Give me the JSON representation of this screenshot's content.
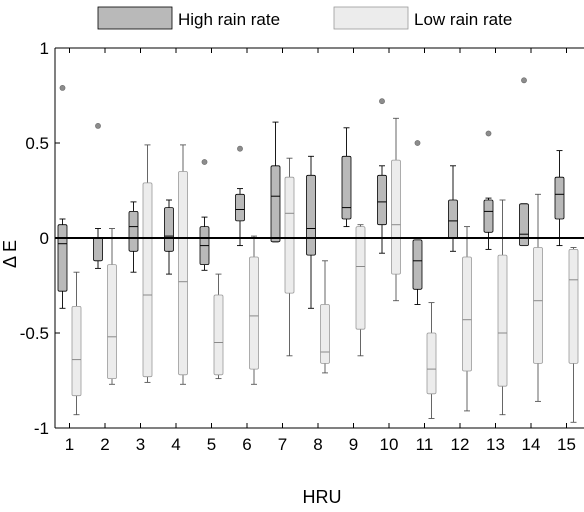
{
  "chart_data": {
    "type": "box",
    "xlabel": "HRU",
    "ylabel": "Δ E",
    "ylim": [
      -1,
      1
    ],
    "yticks": [
      "-1",
      "-0.5",
      "0",
      "0.5",
      "1"
    ],
    "categories": [
      "1",
      "2",
      "3",
      "4",
      "5",
      "6",
      "7",
      "8",
      "9",
      "10",
      "11",
      "12",
      "13",
      "14",
      "15"
    ],
    "reference_line": 0,
    "legend_position": "top",
    "series": [
      {
        "name": "High rain rate",
        "color": "#b9b9b9",
        "boxes": [
          {
            "whisker_low": -0.37,
            "q1": -0.28,
            "median": -0.03,
            "q3": 0.07,
            "whisker_high": 0.1,
            "outliers": [
              0.79
            ]
          },
          {
            "whisker_low": -0.16,
            "q1": -0.12,
            "median": 0.0,
            "q3": 0.0,
            "whisker_high": 0.05,
            "outliers": [
              0.59
            ]
          },
          {
            "whisker_low": -0.18,
            "q1": -0.07,
            "median": 0.06,
            "q3": 0.14,
            "whisker_high": 0.19,
            "outliers": []
          },
          {
            "whisker_low": -0.19,
            "q1": -0.07,
            "median": 0.01,
            "q3": 0.16,
            "whisker_high": 0.2,
            "outliers": []
          },
          {
            "whisker_low": -0.17,
            "q1": -0.14,
            "median": -0.04,
            "q3": 0.06,
            "whisker_high": 0.11,
            "outliers": [
              0.4
            ]
          },
          {
            "whisker_low": -0.04,
            "q1": 0.09,
            "median": 0.15,
            "q3": 0.23,
            "whisker_high": 0.26,
            "outliers": [
              0.47
            ]
          },
          {
            "whisker_low": -0.02,
            "q1": -0.02,
            "median": 0.22,
            "q3": 0.38,
            "whisker_high": 0.61,
            "outliers": []
          },
          {
            "whisker_low": -0.37,
            "q1": -0.09,
            "median": 0.05,
            "q3": 0.33,
            "whisker_high": 0.43,
            "outliers": []
          },
          {
            "whisker_low": 0.06,
            "q1": 0.1,
            "median": 0.16,
            "q3": 0.43,
            "whisker_high": 0.58,
            "outliers": []
          },
          {
            "whisker_low": -0.08,
            "q1": 0.07,
            "median": 0.19,
            "q3": 0.33,
            "whisker_high": 0.38,
            "outliers": [
              0.72
            ]
          },
          {
            "whisker_low": -0.35,
            "q1": -0.27,
            "median": -0.12,
            "q3": -0.01,
            "whisker_high": -0.01,
            "outliers": [
              0.5
            ]
          },
          {
            "whisker_low": -0.07,
            "q1": 0.0,
            "median": 0.09,
            "q3": 0.2,
            "whisker_high": 0.38,
            "outliers": []
          },
          {
            "whisker_low": -0.06,
            "q1": 0.03,
            "median": 0.14,
            "q3": 0.2,
            "whisker_high": 0.21,
            "outliers": [
              0.55
            ]
          },
          {
            "whisker_low": -0.04,
            "q1": -0.04,
            "median": 0.02,
            "q3": 0.18,
            "whisker_high": 0.18,
            "outliers": [
              0.83
            ]
          },
          {
            "whisker_low": -0.04,
            "q1": 0.1,
            "median": 0.23,
            "q3": 0.32,
            "whisker_high": 0.46,
            "outliers": []
          }
        ]
      },
      {
        "name": "Low rain rate",
        "color": "#ececec",
        "boxes": [
          {
            "whisker_low": -0.93,
            "q1": -0.83,
            "median": -0.64,
            "q3": -0.36,
            "whisker_high": -0.18,
            "outliers": []
          },
          {
            "whisker_low": -0.77,
            "q1": -0.74,
            "median": -0.52,
            "q3": -0.14,
            "whisker_high": 0.05,
            "outliers": []
          },
          {
            "whisker_low": -0.76,
            "q1": -0.73,
            "median": -0.3,
            "q3": 0.29,
            "whisker_high": 0.49,
            "outliers": []
          },
          {
            "whisker_low": -0.77,
            "q1": -0.72,
            "median": -0.23,
            "q3": 0.35,
            "whisker_high": 0.49,
            "outliers": []
          },
          {
            "whisker_low": -0.74,
            "q1": -0.72,
            "median": -0.55,
            "q3": -0.3,
            "whisker_high": -0.19,
            "outliers": []
          },
          {
            "whisker_low": -0.77,
            "q1": -0.69,
            "median": -0.41,
            "q3": -0.1,
            "whisker_high": 0.01,
            "outliers": []
          },
          {
            "whisker_low": -0.62,
            "q1": -0.29,
            "median": 0.13,
            "q3": 0.32,
            "whisker_high": 0.42,
            "outliers": []
          },
          {
            "whisker_low": -0.71,
            "q1": -0.66,
            "median": -0.6,
            "q3": -0.35,
            "whisker_high": -0.12,
            "outliers": []
          },
          {
            "whisker_low": -0.62,
            "q1": -0.48,
            "median": -0.15,
            "q3": 0.06,
            "whisker_high": 0.07,
            "outliers": []
          },
          {
            "whisker_low": -0.33,
            "q1": -0.19,
            "median": 0.07,
            "q3": 0.41,
            "whisker_high": 0.63,
            "outliers": []
          },
          {
            "whisker_low": -0.95,
            "q1": -0.82,
            "median": -0.69,
            "q3": -0.5,
            "whisker_high": -0.34,
            "outliers": []
          },
          {
            "whisker_low": -0.91,
            "q1": -0.7,
            "median": -0.43,
            "q3": -0.1,
            "whisker_high": 0.06,
            "outliers": []
          },
          {
            "whisker_low": -0.93,
            "q1": -0.78,
            "median": -0.5,
            "q3": -0.09,
            "whisker_high": 0.2,
            "outliers": []
          },
          {
            "whisker_low": -0.86,
            "q1": -0.66,
            "median": -0.33,
            "q3": -0.05,
            "whisker_high": 0.23,
            "outliers": []
          },
          {
            "whisker_low": -0.97,
            "q1": -0.66,
            "median": -0.22,
            "q3": -0.06,
            "whisker_high": -0.05,
            "outliers": []
          }
        ]
      }
    ]
  }
}
